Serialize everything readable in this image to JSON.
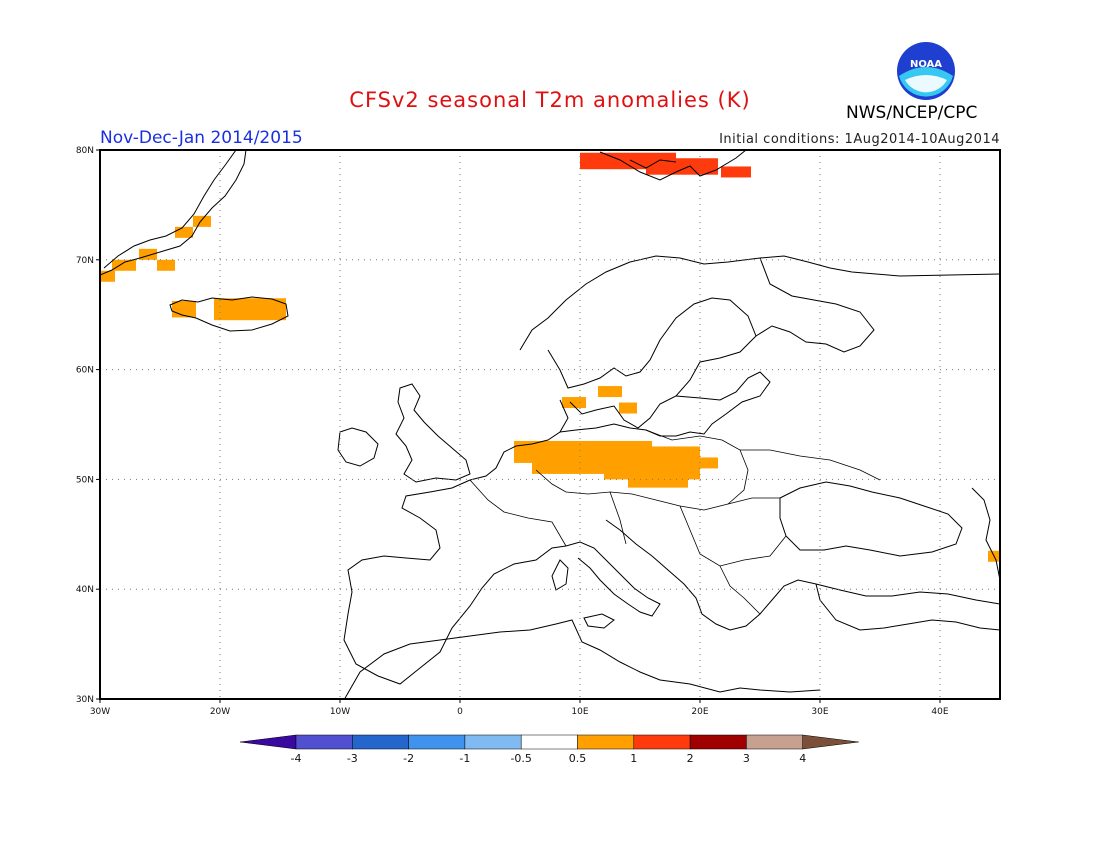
{
  "header": {
    "title": "CFSv2 seasonal T2m anomalies (K)",
    "season": "Nov-Dec-Jan 2014/2015",
    "initial_conditions": "Initial conditions: 1Aug2014-10Aug2014",
    "agency": "NWS/NCEP/CPC",
    "logo_text": "NOAA"
  },
  "map": {
    "lon_range": [
      -30,
      45
    ],
    "lat_range": [
      30,
      80
    ],
    "lat_ticks": [
      "30N",
      "40N",
      "50N",
      "60N",
      "70N",
      "80N"
    ],
    "lon_ticks": [
      "30W",
      "20W",
      "10W",
      "0",
      "10E",
      "20E",
      "30E",
      "40E"
    ],
    "anomaly_cells": [
      {
        "lon": -29.5,
        "lat": 68.5,
        "value": 0.7
      },
      {
        "lon": -28.0,
        "lat": 69.5,
        "value": 0.7
      },
      {
        "lon": -26.0,
        "lat": 70.5,
        "value": 0.7
      },
      {
        "lon": -24.5,
        "lat": 69.5,
        "value": 0.7
      },
      {
        "lon": -23.0,
        "lat": 72.5,
        "value": 0.7
      },
      {
        "lon": -21.5,
        "lat": 73.5,
        "value": 0.7
      },
      {
        "lon": -23.0,
        "lat": 65.5,
        "value": 0.7
      },
      {
        "lon": -17.5,
        "lat": 65.5,
        "value": 0.8
      },
      {
        "lon": 14.0,
        "lat": 79.0,
        "value": 1.3
      },
      {
        "lon": 18.5,
        "lat": 78.5,
        "value": 1.3
      },
      {
        "lon": 23.0,
        "lat": 78.0,
        "value": 1.3
      },
      {
        "lon": 9.5,
        "lat": 57.0,
        "value": 0.7
      },
      {
        "lon": 12.5,
        "lat": 58.0,
        "value": 0.7
      },
      {
        "lon": 14.0,
        "lat": 56.5,
        "value": 0.7
      },
      {
        "lon": 5.5,
        "lat": 52.5,
        "value": 0.7
      },
      {
        "lon": 11.0,
        "lat": 52.0,
        "value": 0.8
      },
      {
        "lon": 16.0,
        "lat": 51.5,
        "value": 0.8
      },
      {
        "lon": 19.5,
        "lat": 51.5,
        "value": 0.7
      },
      {
        "lon": 16.5,
        "lat": 50.0,
        "value": 0.7
      },
      {
        "lon": 44.5,
        "lat": 43.0,
        "value": 0.6
      }
    ]
  },
  "colorbar": {
    "labels": [
      "-4",
      "-3",
      "-2",
      "-1",
      "-0.5",
      "0.5",
      "1",
      "2",
      "3",
      "4"
    ],
    "colors": [
      "#3a09a0",
      "#5050d0",
      "#2466cc",
      "#3f93ec",
      "#7fbaf2",
      "#ffffff",
      "#ffa000",
      "#ff3b0e",
      "#a00000",
      "#c8a090",
      "#7a5038"
    ]
  }
}
